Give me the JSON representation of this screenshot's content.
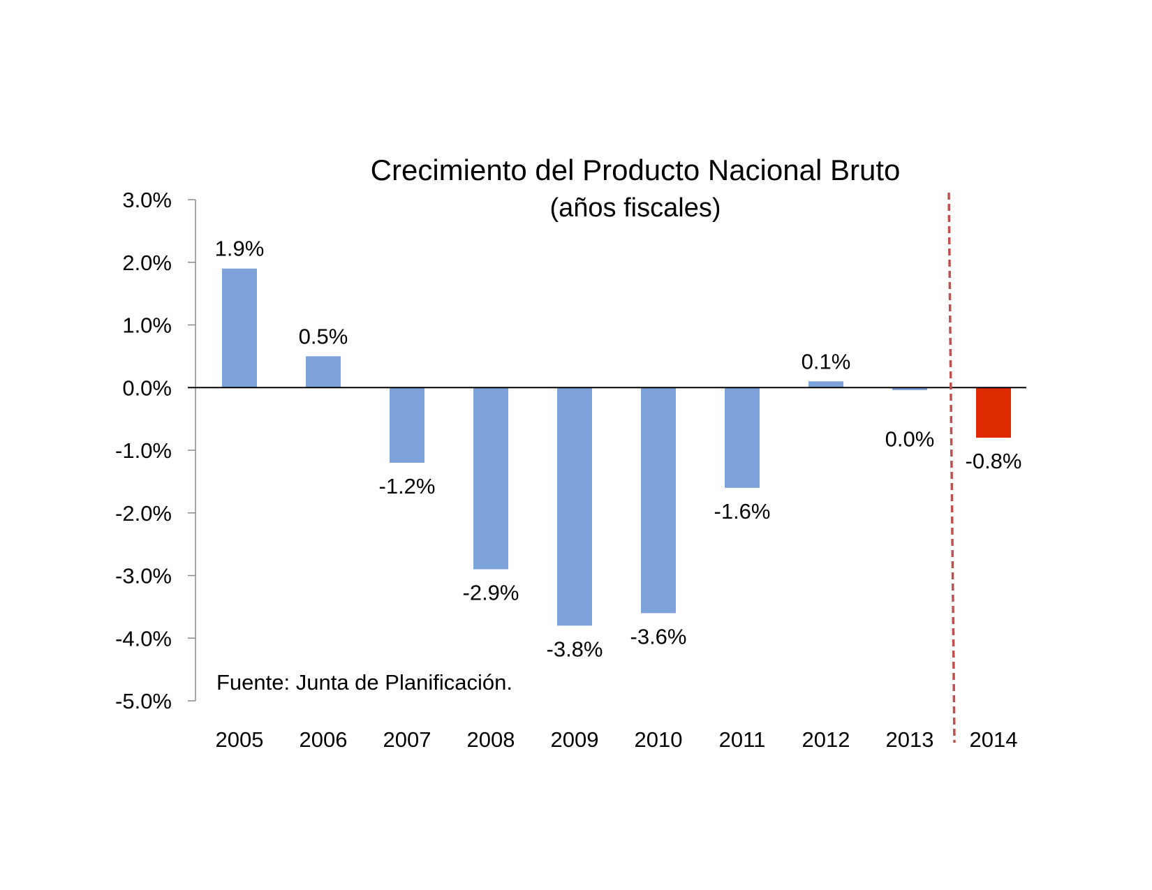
{
  "chart_data": {
    "type": "bar",
    "title": "Crecimiento del Producto Nacional Bruto",
    "subtitle": "(años fiscales)",
    "source": "Fuente: Junta de Planificación.",
    "categories": [
      "2005",
      "2006",
      "2007",
      "2008",
      "2009",
      "2010",
      "2011",
      "2012",
      "2013",
      "2014"
    ],
    "values": [
      1.9,
      0.5,
      -1.2,
      -2.9,
      -3.8,
      -3.6,
      -1.6,
      0.1,
      -0.04,
      -0.8
    ],
    "data_labels": [
      "1.9%",
      "0.5%",
      "-1.2%",
      "-2.9%",
      "-3.8%",
      "-3.6%",
      "-1.6%",
      "0.1%",
      "0.0%",
      "-0.8%"
    ],
    "yticks": [
      "3.0%",
      "2.0%",
      "1.0%",
      "0.0%",
      "-1.0%",
      "-2.0%",
      "-3.0%",
      "-4.0%",
      "-5.0%"
    ],
    "ylim": [
      -5,
      3
    ],
    "grid": false,
    "legend": "none",
    "colors": {
      "bar": "#7da2d9",
      "highlight": "#dd2a00",
      "divider": "#c0504d",
      "axis": "#000000"
    },
    "highlight_index": 9,
    "divider_between": [
      "2013",
      "2014"
    ]
  }
}
